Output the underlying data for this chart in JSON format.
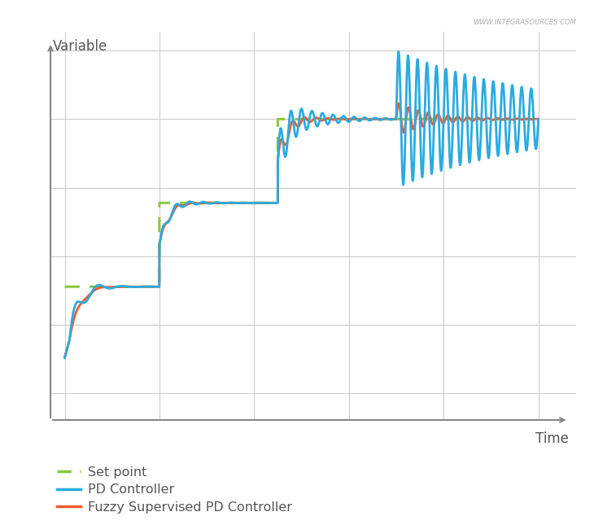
{
  "xlabel": "Time",
  "ylabel": "Variable",
  "watermark": "WWW.INTEGRASOURCES.COM",
  "bg_color": "#ffffff",
  "grid_color": "#cccccc",
  "axis_color": "#888888",
  "text_color": "#555555",
  "setpoint_color": "#8dc63f",
  "pd_color": "#29abe2",
  "fuzzy_color": "#f15a29",
  "legend_labels": [
    "Set point",
    "PD Controller",
    "Fuzzy Supervised PD Controller"
  ],
  "xlim": [
    0.0,
    1.0
  ],
  "ylim": [
    0.0,
    1.0
  ],
  "sp_levels": [
    0.28,
    0.5,
    0.72
  ],
  "sp_times": [
    0.0,
    0.2,
    0.45,
    0.7,
    1.0
  ]
}
